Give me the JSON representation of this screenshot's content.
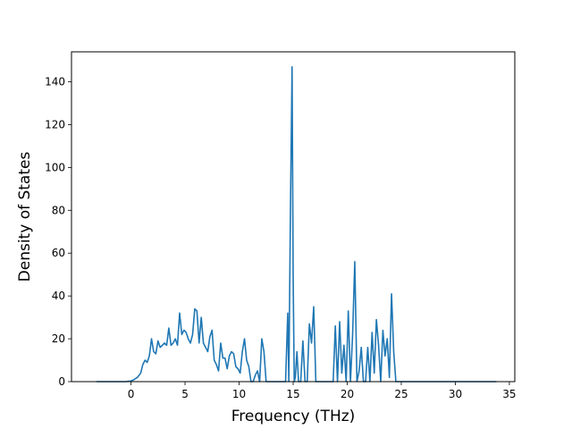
{
  "chart_data": {
    "type": "line",
    "title": "",
    "xlabel": "Frequency (THz)",
    "ylabel": "Density of States",
    "xlim": [
      -5.5,
      35.5
    ],
    "ylim": [
      0,
      154
    ],
    "xticks": [
      0,
      5,
      10,
      15,
      20,
      25,
      30,
      35
    ],
    "yticks": [
      0,
      20,
      40,
      60,
      80,
      100,
      120,
      140
    ],
    "grid": false,
    "legend": "none",
    "color": "#1f77b4",
    "series": [
      {
        "x": [
          -3.2,
          -0.5,
          0.0,
          0.3,
          0.6,
          0.9,
          1.1,
          1.3,
          1.5,
          1.7,
          1.9,
          2.1,
          2.3,
          2.5,
          2.7,
          2.9,
          3.1,
          3.3,
          3.5,
          3.7,
          3.9,
          4.1,
          4.3,
          4.5,
          4.7,
          4.9,
          5.1,
          5.3,
          5.5,
          5.7,
          5.9,
          6.1,
          6.3,
          6.5,
          6.7,
          6.9,
          7.1,
          7.3,
          7.5,
          7.7,
          7.9,
          8.1,
          8.3,
          8.5,
          8.7,
          8.9,
          9.1,
          9.3,
          9.5,
          9.7,
          9.9,
          10.1,
          10.3,
          10.5,
          10.7,
          10.9,
          11.1,
          11.3,
          11.5,
          11.7,
          11.9,
          12.1,
          12.3,
          12.5,
          12.7,
          12.9,
          13.1,
          13.3,
          13.5,
          13.7,
          13.9,
          14.1,
          14.3,
          14.5,
          14.6,
          14.75,
          14.9,
          15.0,
          15.1,
          15.2,
          15.35,
          15.5,
          15.7,
          15.9,
          16.1,
          16.3,
          16.5,
          16.7,
          16.9,
          17.1,
          17.3,
          17.5,
          17.7,
          17.9,
          18.1,
          18.3,
          18.5,
          18.7,
          18.9,
          19.1,
          19.3,
          19.5,
          19.7,
          19.9,
          20.1,
          20.3,
          20.5,
          20.7,
          20.9,
          21.1,
          21.3,
          21.5,
          21.7,
          21.9,
          22.1,
          22.3,
          22.5,
          22.7,
          22.9,
          23.1,
          23.3,
          23.5,
          23.7,
          23.9,
          24.1,
          24.3,
          24.5,
          24.7,
          24.9,
          25.5,
          33.8
        ],
        "y": [
          0,
          0,
          0.3,
          1,
          2,
          4,
          8,
          10,
          9,
          12,
          20,
          14,
          13,
          19,
          16,
          17,
          18,
          17,
          25,
          17,
          18,
          20,
          17,
          32,
          22,
          24,
          23,
          20,
          18,
          22,
          34,
          33,
          18,
          30,
          18,
          16,
          14,
          21,
          24,
          10,
          8,
          5,
          18,
          11,
          11,
          6,
          12,
          14,
          13,
          7,
          6,
          4,
          14,
          20,
          10,
          7,
          0,
          0,
          3,
          5,
          0,
          20,
          14,
          0,
          0,
          0,
          0,
          0,
          0,
          0,
          0,
          0,
          0,
          32,
          0,
          80,
          147,
          50,
          0,
          2,
          14,
          0,
          0,
          19,
          0,
          0,
          27,
          18,
          35,
          0,
          0,
          0,
          0,
          0,
          0,
          0,
          0,
          0,
          26,
          0,
          28,
          4,
          17,
          0,
          33,
          0,
          22,
          56,
          0,
          5,
          16,
          0,
          0,
          16,
          0,
          23,
          4,
          29,
          17,
          0,
          24,
          12,
          20,
          2,
          41,
          14,
          0,
          0,
          0,
          0,
          0
        ]
      }
    ]
  }
}
